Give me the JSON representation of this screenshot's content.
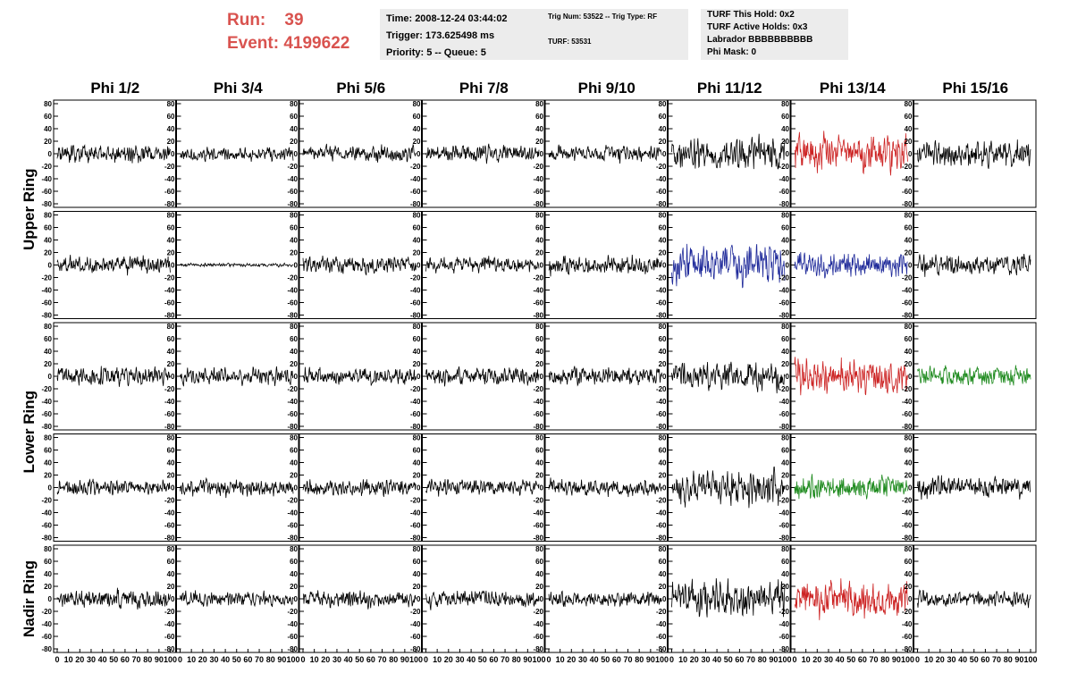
{
  "header": {
    "run_label": "Run:",
    "run_value": "39",
    "event_label": "Event:",
    "event_value": "4199622",
    "time": "Time: 2008-12-24 03:44:02",
    "trigger": "Trigger: 173.625498 ms",
    "priority": "Priority: 5 -- Queue: 5",
    "trig_num": "Trig Num: 53522 -- Trig Type: RF",
    "turf": "TURF: 53531",
    "turf_this_hold": "TURF This Hold: 0x2",
    "turf_active_holds": "TURF Active Holds: 0x3",
    "labrador": "Labrador BBBBBBBBBB",
    "phi_mask": "Phi Mask: 0"
  },
  "chart_data": {
    "type": "line",
    "columns": [
      "Phi 1/2",
      "Phi 3/4",
      "Phi 5/6",
      "Phi 7/8",
      "Phi 9/10",
      "Phi 11/12",
      "Phi 13/14",
      "Phi 15/16"
    ],
    "ring_labels": [
      {
        "label": "Upper Ring",
        "rows": [
          0,
          1
        ]
      },
      {
        "label": "Lower Ring",
        "rows": [
          2,
          3
        ]
      },
      {
        "label": "Nadir Ring",
        "rows": [
          4
        ]
      }
    ],
    "ylim": [
      -80,
      80
    ],
    "yticks": [
      "80",
      "60",
      "40",
      "20",
      "0",
      "-20",
      "-40",
      "-60",
      "-80"
    ],
    "xlim": [
      0,
      100
    ],
    "xticks": [
      "0",
      "10",
      "20",
      "30",
      "40",
      "50",
      "60",
      "70",
      "80",
      "90",
      "100"
    ],
    "samples": 260,
    "colors": {
      "black": "#000000",
      "red": "#cc2222",
      "blue": "#1f2a9a",
      "green": "#1e8a1e"
    },
    "panels": [
      [
        {
          "c": "black",
          "a": 16,
          "s": 1
        },
        {
          "c": "black",
          "a": 12,
          "s": 2
        },
        {
          "c": "black",
          "a": 14,
          "s": 3
        },
        {
          "c": "black",
          "a": 14,
          "s": 4
        },
        {
          "c": "black",
          "a": 13,
          "s": 5
        },
        {
          "c": "black",
          "a": 26,
          "s": 6
        },
        {
          "c": "red",
          "a": 30,
          "s": 7
        },
        {
          "c": "black",
          "a": 22,
          "s": 8
        }
      ],
      [
        {
          "c": "black",
          "a": 16,
          "s": 9
        },
        {
          "c": "black",
          "a": 3,
          "s": 10
        },
        {
          "c": "black",
          "a": 14,
          "s": 11
        },
        {
          "c": "black",
          "a": 14,
          "s": 12
        },
        {
          "c": "black",
          "a": 16,
          "s": 13
        },
        {
          "c": "blue",
          "a": 32,
          "s": 14
        },
        {
          "c": "blue",
          "a": 22,
          "s": 15
        },
        {
          "c": "black",
          "a": 18,
          "s": 16
        }
      ],
      [
        {
          "c": "black",
          "a": 16,
          "s": 17
        },
        {
          "c": "black",
          "a": 14,
          "s": 18
        },
        {
          "c": "black",
          "a": 14,
          "s": 19
        },
        {
          "c": "black",
          "a": 15,
          "s": 20
        },
        {
          "c": "black",
          "a": 15,
          "s": 21
        },
        {
          "c": "black",
          "a": 22,
          "s": 22
        },
        {
          "c": "red",
          "a": 30,
          "s": 23
        },
        {
          "c": "green",
          "a": 16,
          "s": 24
        }
      ],
      [
        {
          "c": "black",
          "a": 14,
          "s": 25
        },
        {
          "c": "black",
          "a": 14,
          "s": 26
        },
        {
          "c": "black",
          "a": 14,
          "s": 27
        },
        {
          "c": "black",
          "a": 14,
          "s": 28
        },
        {
          "c": "black",
          "a": 14,
          "s": 29
        },
        {
          "c": "black",
          "a": 28,
          "s": 30
        },
        {
          "c": "green",
          "a": 20,
          "s": 31
        },
        {
          "c": "black",
          "a": 18,
          "s": 32
        }
      ],
      [
        {
          "c": "black",
          "a": 16,
          "s": 33
        },
        {
          "c": "black",
          "a": 12,
          "s": 34
        },
        {
          "c": "black",
          "a": 14,
          "s": 35
        },
        {
          "c": "black",
          "a": 14,
          "s": 36
        },
        {
          "c": "black",
          "a": 13,
          "s": 37
        },
        {
          "c": "black",
          "a": 30,
          "s": 38
        },
        {
          "c": "red",
          "a": 30,
          "s": 39
        },
        {
          "c": "black",
          "a": 14,
          "s": 40
        }
      ]
    ]
  }
}
